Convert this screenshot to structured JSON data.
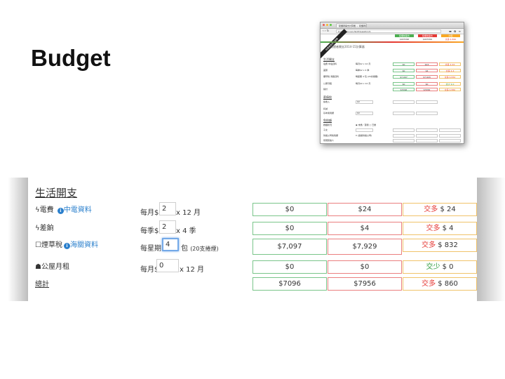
{
  "slide": {
    "title": "Budget"
  },
  "thumbnail": {
    "tab_title": "吸煙者開支計算機 — 吸煙者計…",
    "url": "budget.xinyan.hk/#/question/1",
    "ribbon": "吸煙者開支計算機",
    "col1_header": "吸煙前開支",
    "col2_header": "吸煙後開支",
    "col3_header": "比較",
    "col1_sum": "$007096",
    "col2_sum": "$007956",
    "col3_sum": "交多 $ 860",
    "page_title": "吸煙者開支2014-15計算器",
    "section1": "生活開支",
    "rows": [
      {
        "label": "電費 中電資料",
        "mid": "每月$2  x 12 月",
        "c1": "$0",
        "c2": "$24",
        "c3": "交多 $ 24"
      },
      {
        "label": "差餉",
        "mid": "每季$2  x 4 季",
        "c1": "$0",
        "c2": "$4",
        "c3": "交多 $ 4"
      },
      {
        "label": "煙草稅 海關資料",
        "mid": "每星期 4 包 (20支捲煙)",
        "c1": "$7,097",
        "c2": "$7,929",
        "c3": "交多 $ 832"
      },
      {
        "label": "公屋月租",
        "mid": "每月$0  x 12 月",
        "c1": "$0",
        "c2": "$0",
        "c3": "交少 $ 0"
      },
      {
        "label": "總計",
        "mid": "",
        "c1": "$7096",
        "c2": "$7956",
        "c3": "交多 $ 860"
      }
    ],
    "section2": "薪俸稅",
    "s2_rows": [
      {
        "label": "總收入",
        "mid": "$0"
      },
      {
        "label": "扣減",
        "mid": ""
      },
      {
        "label": "基本免稅額",
        "mid": "$0"
      }
    ],
    "section3": "免稅額",
    "s3_rows": [
      {
        "label": "婚姻狀況",
        "mid": "◉ 未婚／喪偶 ○ 已婚"
      },
      {
        "label": "子女",
        "mid": ""
      },
      {
        "label": "供養父母免稅額",
        "mid": "0  (連續供養父母)"
      },
      {
        "label": "傷殘受養人",
        "mid": ""
      }
    ]
  },
  "section": {
    "title": "生活開支"
  },
  "rows": [
    {
      "icon": "ϟ",
      "label": "電費",
      "info": "i",
      "link": "中電資料",
      "prefix": "每月$",
      "input": "2",
      "suffix": "x 12 月",
      "suffix_small": "",
      "before": "$0",
      "after": "$24",
      "diff_word": "交多",
      "diff_amount": "$ 24"
    },
    {
      "icon": "ϟ",
      "label": "差餉",
      "info": "",
      "link": "",
      "prefix": "每季$",
      "input": "2",
      "suffix": "x 4 季",
      "suffix_small": "",
      "before": "$0",
      "after": "$4",
      "diff_word": "交多",
      "diff_amount": "$ 4"
    },
    {
      "icon": "☐",
      "label": "煙草稅",
      "info": "i",
      "link": "海關資料",
      "prefix": "每星期",
      "input": "4",
      "suffix": "包",
      "suffix_small": "(20支捲煙)",
      "before": "$7,097",
      "after": "$7,929",
      "diff_word": "交多",
      "diff_amount": "$ 832"
    },
    {
      "icon": "☗",
      "label": "公屋月租",
      "info": "",
      "link": "",
      "prefix": "每月$",
      "input": "0",
      "suffix": "x 12 月",
      "suffix_small": "",
      "before": "$0",
      "after": "$0",
      "diff_word": "交少",
      "diff_amount": "$ 0"
    }
  ],
  "total": {
    "label": "總計",
    "before": "$7096",
    "after": "$7956",
    "diff_word": "交多",
    "diff_amount": "$ 860"
  },
  "colors": {
    "green_border": "#7ac58a",
    "red_border": "#ea7f7f",
    "yellow_border": "#f0c36a",
    "info_blue": "#2a7fcc",
    "increase_red": "#e53935",
    "decrease_green": "#2e9b3c"
  }
}
